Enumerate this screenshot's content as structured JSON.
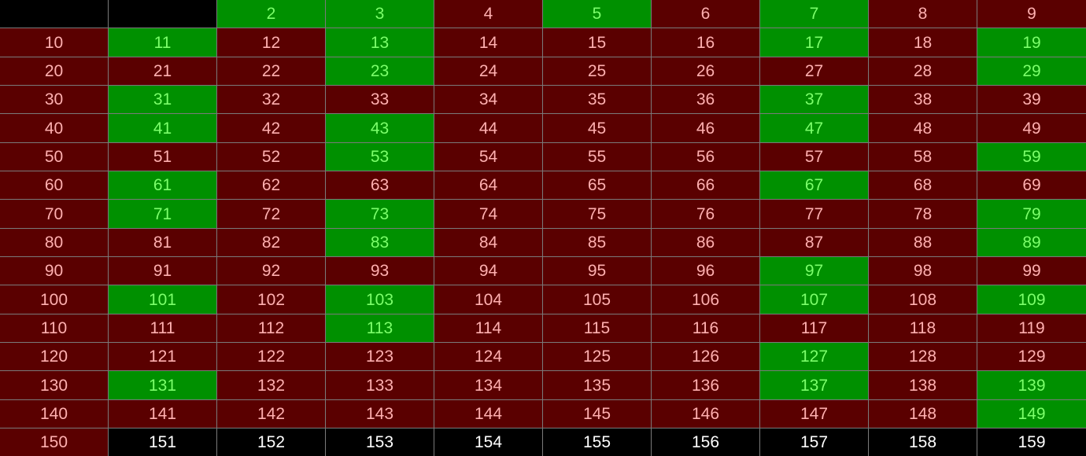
{
  "colors": {
    "prime_bg": "#009000",
    "prime_text": "#7CFF6B",
    "composite_bg": "#5A0000",
    "composite_text": "#FFB0B0",
    "blank_bg": "#000000",
    "unevaluated_bg": "#000000",
    "unevaluated_text": "#FFFFFF",
    "border": "#7A7A7A"
  },
  "rows": [
    [
      {
        "text": "",
        "state": "blank"
      },
      {
        "text": "",
        "state": "blank"
      },
      {
        "text": "2",
        "state": "prime"
      },
      {
        "text": "3",
        "state": "prime"
      },
      {
        "text": "4",
        "state": "composite"
      },
      {
        "text": "5",
        "state": "prime"
      },
      {
        "text": "6",
        "state": "composite"
      },
      {
        "text": "7",
        "state": "prime"
      },
      {
        "text": "8",
        "state": "composite"
      },
      {
        "text": "9",
        "state": "composite"
      }
    ],
    [
      {
        "text": "10",
        "state": "composite"
      },
      {
        "text": "11",
        "state": "prime"
      },
      {
        "text": "12",
        "state": "composite"
      },
      {
        "text": "13",
        "state": "prime"
      },
      {
        "text": "14",
        "state": "composite"
      },
      {
        "text": "15",
        "state": "composite"
      },
      {
        "text": "16",
        "state": "composite"
      },
      {
        "text": "17",
        "state": "prime"
      },
      {
        "text": "18",
        "state": "composite"
      },
      {
        "text": "19",
        "state": "prime"
      }
    ],
    [
      {
        "text": "20",
        "state": "composite"
      },
      {
        "text": "21",
        "state": "composite"
      },
      {
        "text": "22",
        "state": "composite"
      },
      {
        "text": "23",
        "state": "prime"
      },
      {
        "text": "24",
        "state": "composite"
      },
      {
        "text": "25",
        "state": "composite"
      },
      {
        "text": "26",
        "state": "composite"
      },
      {
        "text": "27",
        "state": "composite"
      },
      {
        "text": "28",
        "state": "composite"
      },
      {
        "text": "29",
        "state": "prime"
      }
    ],
    [
      {
        "text": "30",
        "state": "composite"
      },
      {
        "text": "31",
        "state": "prime"
      },
      {
        "text": "32",
        "state": "composite"
      },
      {
        "text": "33",
        "state": "composite"
      },
      {
        "text": "34",
        "state": "composite"
      },
      {
        "text": "35",
        "state": "composite"
      },
      {
        "text": "36",
        "state": "composite"
      },
      {
        "text": "37",
        "state": "prime"
      },
      {
        "text": "38",
        "state": "composite"
      },
      {
        "text": "39",
        "state": "composite"
      }
    ],
    [
      {
        "text": "40",
        "state": "composite"
      },
      {
        "text": "41",
        "state": "prime"
      },
      {
        "text": "42",
        "state": "composite"
      },
      {
        "text": "43",
        "state": "prime"
      },
      {
        "text": "44",
        "state": "composite"
      },
      {
        "text": "45",
        "state": "composite"
      },
      {
        "text": "46",
        "state": "composite"
      },
      {
        "text": "47",
        "state": "prime"
      },
      {
        "text": "48",
        "state": "composite"
      },
      {
        "text": "49",
        "state": "composite"
      }
    ],
    [
      {
        "text": "50",
        "state": "composite"
      },
      {
        "text": "51",
        "state": "composite"
      },
      {
        "text": "52",
        "state": "composite"
      },
      {
        "text": "53",
        "state": "prime"
      },
      {
        "text": "54",
        "state": "composite"
      },
      {
        "text": "55",
        "state": "composite"
      },
      {
        "text": "56",
        "state": "composite"
      },
      {
        "text": "57",
        "state": "composite"
      },
      {
        "text": "58",
        "state": "composite"
      },
      {
        "text": "59",
        "state": "prime"
      }
    ],
    [
      {
        "text": "60",
        "state": "composite"
      },
      {
        "text": "61",
        "state": "prime"
      },
      {
        "text": "62",
        "state": "composite"
      },
      {
        "text": "63",
        "state": "composite"
      },
      {
        "text": "64",
        "state": "composite"
      },
      {
        "text": "65",
        "state": "composite"
      },
      {
        "text": "66",
        "state": "composite"
      },
      {
        "text": "67",
        "state": "prime"
      },
      {
        "text": "68",
        "state": "composite"
      },
      {
        "text": "69",
        "state": "composite"
      }
    ],
    [
      {
        "text": "70",
        "state": "composite"
      },
      {
        "text": "71",
        "state": "prime"
      },
      {
        "text": "72",
        "state": "composite"
      },
      {
        "text": "73",
        "state": "prime"
      },
      {
        "text": "74",
        "state": "composite"
      },
      {
        "text": "75",
        "state": "composite"
      },
      {
        "text": "76",
        "state": "composite"
      },
      {
        "text": "77",
        "state": "composite"
      },
      {
        "text": "78",
        "state": "composite"
      },
      {
        "text": "79",
        "state": "prime"
      }
    ],
    [
      {
        "text": "80",
        "state": "composite"
      },
      {
        "text": "81",
        "state": "composite"
      },
      {
        "text": "82",
        "state": "composite"
      },
      {
        "text": "83",
        "state": "prime"
      },
      {
        "text": "84",
        "state": "composite"
      },
      {
        "text": "85",
        "state": "composite"
      },
      {
        "text": "86",
        "state": "composite"
      },
      {
        "text": "87",
        "state": "composite"
      },
      {
        "text": "88",
        "state": "composite"
      },
      {
        "text": "89",
        "state": "prime"
      }
    ],
    [
      {
        "text": "90",
        "state": "composite"
      },
      {
        "text": "91",
        "state": "composite"
      },
      {
        "text": "92",
        "state": "composite"
      },
      {
        "text": "93",
        "state": "composite"
      },
      {
        "text": "94",
        "state": "composite"
      },
      {
        "text": "95",
        "state": "composite"
      },
      {
        "text": "96",
        "state": "composite"
      },
      {
        "text": "97",
        "state": "prime"
      },
      {
        "text": "98",
        "state": "composite"
      },
      {
        "text": "99",
        "state": "composite"
      }
    ],
    [
      {
        "text": "100",
        "state": "composite"
      },
      {
        "text": "101",
        "state": "prime"
      },
      {
        "text": "102",
        "state": "composite"
      },
      {
        "text": "103",
        "state": "prime"
      },
      {
        "text": "104",
        "state": "composite"
      },
      {
        "text": "105",
        "state": "composite"
      },
      {
        "text": "106",
        "state": "composite"
      },
      {
        "text": "107",
        "state": "prime"
      },
      {
        "text": "108",
        "state": "composite"
      },
      {
        "text": "109",
        "state": "prime"
      }
    ],
    [
      {
        "text": "110",
        "state": "composite"
      },
      {
        "text": "111",
        "state": "composite"
      },
      {
        "text": "112",
        "state": "composite"
      },
      {
        "text": "113",
        "state": "prime"
      },
      {
        "text": "114",
        "state": "composite"
      },
      {
        "text": "115",
        "state": "composite"
      },
      {
        "text": "116",
        "state": "composite"
      },
      {
        "text": "117",
        "state": "composite"
      },
      {
        "text": "118",
        "state": "composite"
      },
      {
        "text": "119",
        "state": "composite"
      }
    ],
    [
      {
        "text": "120",
        "state": "composite"
      },
      {
        "text": "121",
        "state": "composite"
      },
      {
        "text": "122",
        "state": "composite"
      },
      {
        "text": "123",
        "state": "composite"
      },
      {
        "text": "124",
        "state": "composite"
      },
      {
        "text": "125",
        "state": "composite"
      },
      {
        "text": "126",
        "state": "composite"
      },
      {
        "text": "127",
        "state": "prime"
      },
      {
        "text": "128",
        "state": "composite"
      },
      {
        "text": "129",
        "state": "composite"
      }
    ],
    [
      {
        "text": "130",
        "state": "composite"
      },
      {
        "text": "131",
        "state": "prime"
      },
      {
        "text": "132",
        "state": "composite"
      },
      {
        "text": "133",
        "state": "composite"
      },
      {
        "text": "134",
        "state": "composite"
      },
      {
        "text": "135",
        "state": "composite"
      },
      {
        "text": "136",
        "state": "composite"
      },
      {
        "text": "137",
        "state": "prime"
      },
      {
        "text": "138",
        "state": "composite"
      },
      {
        "text": "139",
        "state": "prime"
      }
    ],
    [
      {
        "text": "140",
        "state": "composite"
      },
      {
        "text": "141",
        "state": "composite"
      },
      {
        "text": "142",
        "state": "composite"
      },
      {
        "text": "143",
        "state": "composite"
      },
      {
        "text": "144",
        "state": "composite"
      },
      {
        "text": "145",
        "state": "composite"
      },
      {
        "text": "146",
        "state": "composite"
      },
      {
        "text": "147",
        "state": "composite"
      },
      {
        "text": "148",
        "state": "composite"
      },
      {
        "text": "149",
        "state": "prime"
      }
    ],
    [
      {
        "text": "150",
        "state": "composite"
      },
      {
        "text": "151",
        "state": "unevaluated"
      },
      {
        "text": "152",
        "state": "unevaluated"
      },
      {
        "text": "153",
        "state": "unevaluated"
      },
      {
        "text": "154",
        "state": "unevaluated"
      },
      {
        "text": "155",
        "state": "unevaluated"
      },
      {
        "text": "156",
        "state": "unevaluated"
      },
      {
        "text": "157",
        "state": "unevaluated"
      },
      {
        "text": "158",
        "state": "unevaluated"
      },
      {
        "text": "159",
        "state": "unevaluated"
      }
    ]
  ]
}
